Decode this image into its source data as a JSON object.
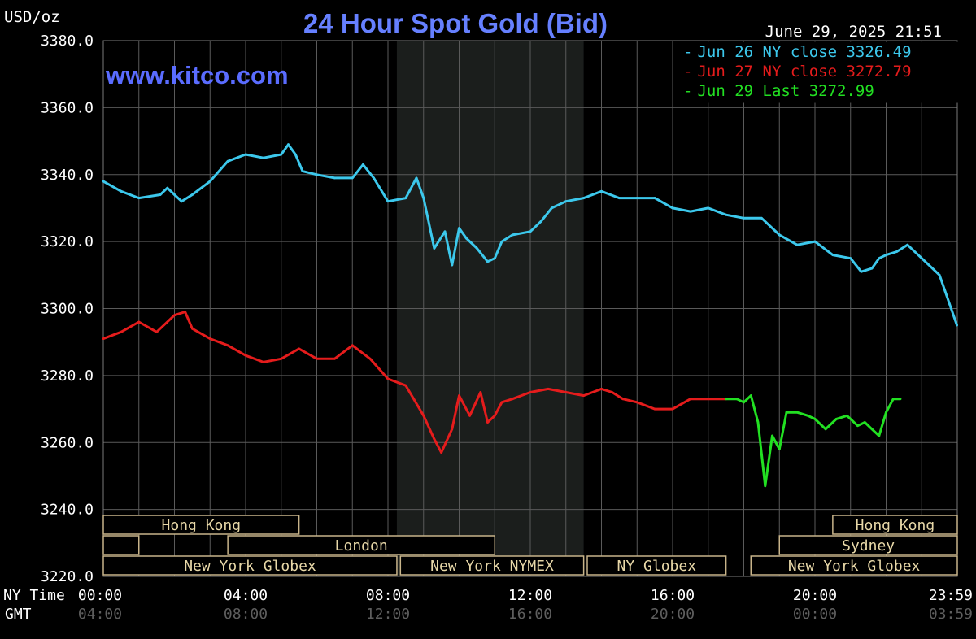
{
  "header": {
    "unit": "USD/oz",
    "title": "24 Hour Spot Gold (Bid)",
    "datetime": "June 29, 2025 21:51",
    "website": "www.kitco.com",
    "title_color": "#6680ff",
    "website_color": "#5a6cff"
  },
  "legend": [
    {
      "text": "Jun 26 NY close 3326.49",
      "color": "#3cc8ec"
    },
    {
      "text": "Jun 27 NY close 3272.79",
      "color": "#e51c1c"
    },
    {
      "text": "Jun 29 Last 3272.99",
      "color": "#22e022"
    }
  ],
  "bottom_axis": {
    "ny_label": "NY Time",
    "gmt_label": "GMT",
    "ny_ticks": [
      "00:00",
      "04:00",
      "08:00",
      "12:00",
      "16:00",
      "20:00",
      "23:59"
    ],
    "gmt_ticks": [
      "04:00",
      "08:00",
      "12:00",
      "16:00",
      "20:00",
      "00:00",
      "03:59"
    ]
  },
  "sessions": [
    {
      "label": "Hong Kong",
      "row": 0,
      "start": 0,
      "end": 5.5
    },
    {
      "label": "",
      "row": 1,
      "start": 0,
      "end": 1.0
    },
    {
      "label": "London",
      "row": 1,
      "start": 3.5,
      "end": 11.0
    },
    {
      "label": "New York Globex",
      "row": 2,
      "start": 0,
      "end": 8.25
    },
    {
      "label": "New York NYMEX",
      "row": 2,
      "start": 8.35,
      "end": 13.5
    },
    {
      "label": "NY Globex",
      "row": 2,
      "start": 13.6,
      "end": 17.5
    },
    {
      "label": "Hong Kong",
      "row": 0,
      "start": 20.5,
      "end": 24
    },
    {
      "label": "Sydney",
      "row": 1,
      "start": 19.0,
      "end": 24
    },
    {
      "label": "New York Globex",
      "row": 2,
      "start": 18.2,
      "end": 24
    }
  ],
  "chart_data": {
    "type": "line",
    "x_unit": "NY time (hours)",
    "xlim": [
      0,
      24
    ],
    "ylim": [
      3220,
      3380
    ],
    "y_ticks": [
      "3380.0",
      "3360.0",
      "3340.0",
      "3320.0",
      "3300.0",
      "3280.0",
      "3260.0",
      "3240.0",
      "3220.0"
    ],
    "grid": true,
    "shaded_region": [
      8.25,
      13.5
    ],
    "series": [
      {
        "name": "Jun 26",
        "color": "#3cc8ec",
        "x": [
          0,
          0.5,
          1.0,
          1.6,
          1.8,
          2.0,
          2.2,
          2.5,
          3.0,
          3.5,
          4.0,
          4.5,
          5.0,
          5.2,
          5.4,
          5.6,
          6.0,
          6.5,
          7.0,
          7.3,
          7.6,
          8.0,
          8.5,
          8.8,
          9.0,
          9.3,
          9.6,
          9.8,
          10.0,
          10.2,
          10.5,
          10.8,
          11.0,
          11.2,
          11.5,
          12.0,
          12.3,
          12.6,
          13.0,
          13.5,
          14.0,
          14.5,
          15.0,
          15.5,
          16.0,
          16.5,
          17.0,
          17.5,
          18.0,
          18.5,
          19.0,
          19.5,
          20.0,
          20.5,
          21.0,
          21.3,
          21.6,
          21.8,
          22.0,
          22.3,
          22.6,
          23.0,
          23.5,
          23.99
        ],
        "values": [
          3338,
          3335,
          3333,
          3334,
          3336,
          3334,
          3332,
          3334,
          3338,
          3344,
          3346,
          3345,
          3346,
          3349,
          3346,
          3341,
          3340,
          3339,
          3339,
          3343,
          3339,
          3332,
          3333,
          3339,
          3333,
          3318,
          3323,
          3313,
          3324,
          3321,
          3318,
          3314,
          3315,
          3320,
          3322,
          3323,
          3326,
          3330,
          3332,
          3333,
          3335,
          3333,
          3333,
          3333,
          3330,
          3329,
          3330,
          3328,
          3327,
          3327,
          3322,
          3319,
          3320,
          3316,
          3315,
          3311,
          3312,
          3315,
          3316,
          3317,
          3319,
          3315,
          3310,
          3295
        ]
      },
      {
        "name": "Jun 27",
        "color": "#e51c1c",
        "x": [
          0,
          0.5,
          1.0,
          1.5,
          2.0,
          2.3,
          2.5,
          3.0,
          3.5,
          4.0,
          4.5,
          5.0,
          5.5,
          6.0,
          6.5,
          7.0,
          7.5,
          8.0,
          8.5,
          9.0,
          9.3,
          9.5,
          9.8,
          10.0,
          10.3,
          10.6,
          10.8,
          11.0,
          11.2,
          11.5,
          12.0,
          12.5,
          13.0,
          13.5,
          14.0,
          14.3,
          14.6,
          15.0,
          15.5,
          16.0,
          16.5,
          17.0,
          17.5
        ],
        "values": [
          3291,
          3293,
          3296,
          3293,
          3298,
          3299,
          3294,
          3291,
          3289,
          3286,
          3284,
          3285,
          3288,
          3285,
          3285,
          3289,
          3285,
          3279,
          3277,
          3268,
          3261,
          3257,
          3264,
          3274,
          3268,
          3275,
          3266,
          3268,
          3272,
          3273,
          3275,
          3276,
          3275,
          3274,
          3276,
          3275,
          3273,
          3272,
          3270,
          3270,
          3273,
          3273,
          3273
        ]
      },
      {
        "name": "Jun 29",
        "color": "#22e022",
        "x": [
          17.5,
          17.8,
          18.0,
          18.2,
          18.4,
          18.6,
          18.8,
          19.0,
          19.2,
          19.5,
          19.8,
          20.0,
          20.3,
          20.6,
          20.9,
          21.2,
          21.4,
          21.6,
          21.8,
          22.0,
          22.2,
          22.4
        ],
        "values": [
          3273,
          3273,
          3272,
          3274,
          3266,
          3247,
          3262,
          3258,
          3269,
          3269,
          3268,
          3267,
          3264,
          3267,
          3268,
          3265,
          3266,
          3264,
          3262,
          3269,
          3273,
          3273
        ]
      }
    ]
  }
}
